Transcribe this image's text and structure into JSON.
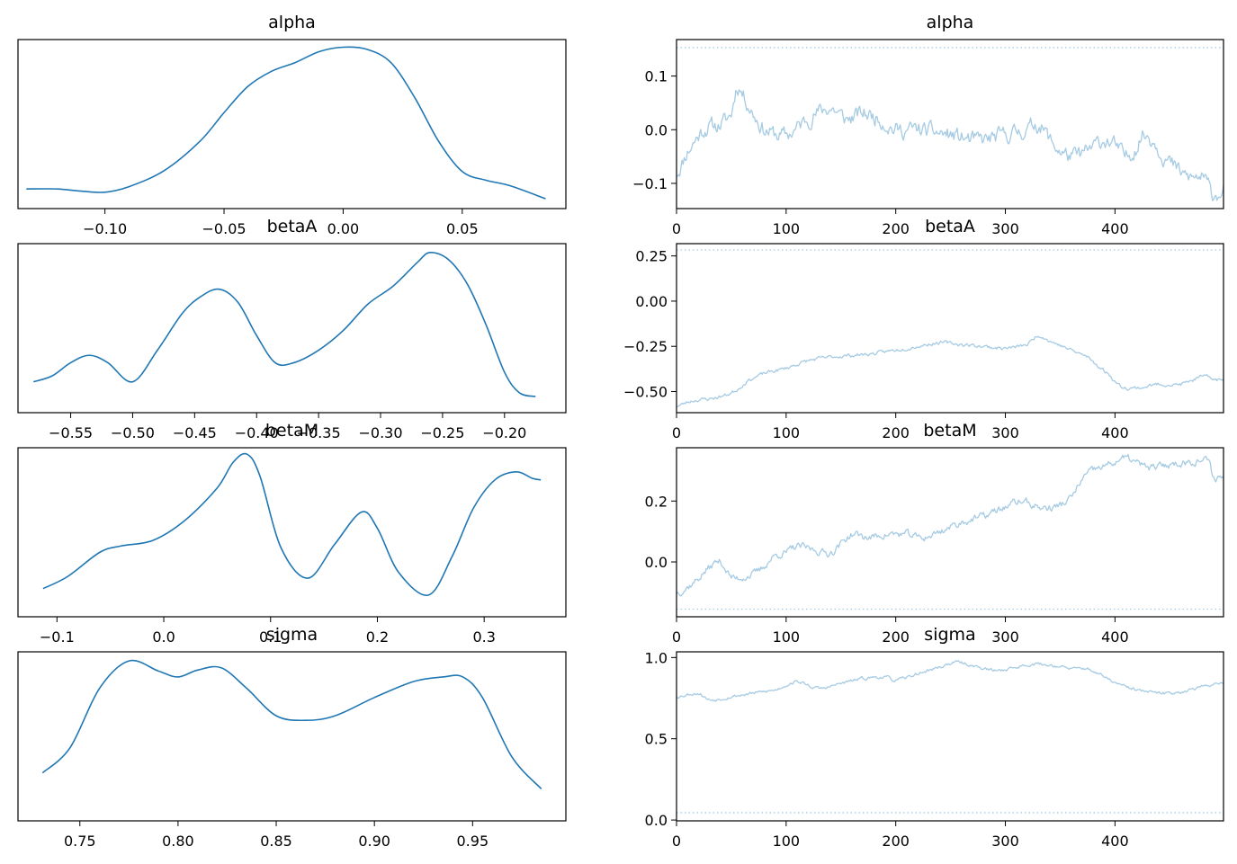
{
  "colors": {
    "kde": "#1f77b4",
    "trace": "#a6cbe3",
    "axes": "#000000"
  },
  "chart_data": [
    {
      "type": "line",
      "panel": "kde",
      "title": "alpha",
      "x": [
        -0.133,
        -0.12,
        -0.11,
        -0.1,
        -0.09,
        -0.075,
        -0.06,
        -0.05,
        -0.04,
        -0.03,
        -0.02,
        -0.01,
        0.0,
        0.01,
        0.02,
        0.03,
        0.04,
        0.05,
        0.06,
        0.07,
        0.085
      ],
      "y": [
        0.18,
        0.18,
        0.16,
        0.15,
        0.2,
        0.35,
        0.62,
        0.88,
        1.12,
        1.26,
        1.34,
        1.44,
        1.48,
        1.46,
        1.34,
        1.02,
        0.62,
        0.34,
        0.26,
        0.21,
        0.09
      ],
      "xticks": [
        -0.1,
        -0.05,
        0.0,
        0.05
      ],
      "xtick_labels": [
        "−0.10",
        "−0.05",
        "0.00",
        "0.05"
      ],
      "xlim": [
        -0.1365,
        0.0935
      ],
      "ylim": [
        0,
        1.55
      ]
    },
    {
      "type": "line",
      "panel": "trace",
      "title": "alpha",
      "x_range": [
        0,
        499
      ],
      "samples": 500,
      "knots_x": [
        0,
        10,
        25,
        40,
        50,
        55,
        62,
        70,
        80,
        100,
        120,
        140,
        155,
        170,
        185,
        200,
        220,
        250,
        275,
        300,
        320,
        330,
        345,
        360,
        375,
        390,
        400,
        410,
        420,
        425,
        435,
        445,
        460,
        470,
        480,
        490,
        499
      ],
      "knots_y": [
        -0.08,
        -0.04,
        0.0,
        0.01,
        0.03,
        0.08,
        0.06,
        0.03,
        0.0,
        -0.01,
        0.02,
        0.04,
        0.02,
        0.03,
        0.02,
        0.0,
        0.0,
        -0.01,
        -0.02,
        -0.01,
        0.0,
        0.01,
        -0.03,
        -0.05,
        -0.04,
        -0.02,
        -0.03,
        -0.05,
        -0.03,
        -0.01,
        -0.02,
        -0.05,
        -0.08,
        -0.09,
        -0.09,
        -0.12,
        -0.11
      ],
      "noise": 0.012,
      "seed": 11,
      "reference_line": 0.153,
      "yticks": [
        -0.1,
        0.0,
        0.1
      ],
      "ytick_labels": [
        "−0.1",
        "0.0",
        "0.1"
      ],
      "xticks": [
        0,
        100,
        200,
        300,
        400
      ],
      "xtick_labels": [
        "0",
        "100",
        "200",
        "300",
        "400"
      ],
      "xlim": [
        0,
        499
      ],
      "ylim": [
        -0.147,
        0.168
      ]
    },
    {
      "type": "line",
      "panel": "kde",
      "title": "betaA",
      "x": [
        -0.58,
        -0.565,
        -0.55,
        -0.535,
        -0.52,
        -0.5,
        -0.48,
        -0.46,
        -0.445,
        -0.43,
        -0.415,
        -0.4,
        -0.385,
        -0.37,
        -0.35,
        -0.33,
        -0.31,
        -0.29,
        -0.27,
        -0.26,
        -0.245,
        -0.23,
        -0.215,
        -0.2,
        -0.188,
        -0.175
      ],
      "y": [
        0.42,
        0.5,
        0.68,
        0.78,
        0.68,
        0.42,
        0.85,
        1.35,
        1.58,
        1.68,
        1.5,
        1.05,
        0.68,
        0.68,
        0.85,
        1.12,
        1.48,
        1.72,
        2.05,
        2.18,
        2.08,
        1.75,
        1.2,
        0.55,
        0.27,
        0.22
      ],
      "xticks": [
        -0.55,
        -0.5,
        -0.45,
        -0.4,
        -0.35,
        -0.3,
        -0.25,
        -0.2
      ],
      "xtick_labels": [
        "−0.55",
        "−0.50",
        "−0.45",
        "−0.40",
        "−0.35",
        "−0.30",
        "−0.25",
        "−0.20"
      ],
      "xlim": [
        -0.5925,
        -0.1505
      ],
      "ylim": [
        0,
        2.3
      ]
    },
    {
      "type": "line",
      "panel": "trace",
      "title": "betaA",
      "x_range": [
        0,
        499
      ],
      "samples": 500,
      "knots_x": [
        0,
        15,
        30,
        45,
        55,
        65,
        80,
        100,
        120,
        140,
        160,
        180,
        200,
        220,
        240,
        260,
        280,
        300,
        320,
        330,
        340,
        360,
        375,
        385,
        395,
        405,
        420,
        440,
        460,
        480,
        499
      ],
      "knots_y": [
        -0.58,
        -0.55,
        -0.54,
        -0.52,
        -0.49,
        -0.44,
        -0.4,
        -0.37,
        -0.33,
        -0.31,
        -0.3,
        -0.29,
        -0.27,
        -0.25,
        -0.23,
        -0.24,
        -0.25,
        -0.26,
        -0.24,
        -0.19,
        -0.22,
        -0.27,
        -0.31,
        -0.36,
        -0.41,
        -0.47,
        -0.48,
        -0.46,
        -0.46,
        -0.42,
        -0.44
      ],
      "noise": 0.008,
      "seed": 23,
      "reference_line": 0.283,
      "yticks": [
        -0.5,
        -0.25,
        0.0,
        0.25
      ],
      "ytick_labels": [
        "−0.50",
        "−0.25",
        "0.00",
        "0.25"
      ],
      "xticks": [
        0,
        100,
        200,
        300,
        400
      ],
      "xtick_labels": [
        "0",
        "100",
        "200",
        "300",
        "400"
      ],
      "xlim": [
        0,
        499
      ],
      "ylim": [
        -0.617,
        0.318
      ]
    },
    {
      "type": "line",
      "panel": "kde",
      "title": "betaM",
      "x": [
        -0.113,
        -0.09,
        -0.06,
        -0.04,
        -0.01,
        0.02,
        0.05,
        0.065,
        0.078,
        0.09,
        0.11,
        0.135,
        0.16,
        0.185,
        0.2,
        0.22,
        0.248,
        0.27,
        0.29,
        0.31,
        0.33,
        0.345,
        0.353
      ],
      "y": [
        0.35,
        0.5,
        0.8,
        0.88,
        0.95,
        1.2,
        1.6,
        1.92,
        2.02,
        1.75,
        0.85,
        0.48,
        0.9,
        1.3,
        1.1,
        0.55,
        0.27,
        0.75,
        1.35,
        1.7,
        1.8,
        1.72,
        1.7
      ],
      "xticks": [
        -0.1,
        0.0,
        0.1,
        0.2,
        0.3
      ],
      "xtick_labels": [
        "−0.1",
        "0.0",
        "0.1",
        "0.2",
        "0.3"
      ],
      "xlim": [
        -0.1365,
        0.3765
      ],
      "ylim": [
        0,
        2.1
      ]
    },
    {
      "type": "line",
      "panel": "trace",
      "title": "betaM",
      "x_range": [
        0,
        499
      ],
      "samples": 500,
      "knots_x": [
        0,
        15,
        30,
        40,
        50,
        60,
        75,
        90,
        100,
        110,
        125,
        140,
        150,
        160,
        175,
        190,
        210,
        225,
        240,
        260,
        280,
        300,
        315,
        330,
        345,
        360,
        370,
        380,
        395,
        410,
        430,
        450,
        470,
        485,
        490,
        499
      ],
      "knots_y": [
        -0.1,
        -0.07,
        -0.02,
        0.0,
        -0.05,
        -0.05,
        -0.03,
        0.02,
        0.03,
        0.05,
        0.04,
        0.03,
        0.06,
        0.09,
        0.08,
        0.09,
        0.09,
        0.08,
        0.1,
        0.13,
        0.15,
        0.18,
        0.2,
        0.18,
        0.18,
        0.21,
        0.27,
        0.3,
        0.32,
        0.34,
        0.31,
        0.32,
        0.33,
        0.33,
        0.28,
        0.28
      ],
      "noise": 0.01,
      "seed": 37,
      "reference_line": -0.155,
      "yticks": [
        0.0,
        0.2
      ],
      "ytick_labels": [
        "0.0",
        "0.2"
      ],
      "xticks": [
        0,
        100,
        200,
        300,
        400
      ],
      "xtick_labels": [
        "0",
        "100",
        "200",
        "300",
        "400"
      ],
      "xlim": [
        0,
        499
      ],
      "ylim": [
        -0.18,
        0.375
      ]
    },
    {
      "type": "line",
      "panel": "kde",
      "title": "sigma",
      "x": [
        0.731,
        0.745,
        0.76,
        0.775,
        0.79,
        0.8,
        0.81,
        0.822,
        0.835,
        0.85,
        0.865,
        0.88,
        0.9,
        0.92,
        0.935,
        0.945,
        0.955,
        0.97,
        0.985
      ],
      "y": [
        1.05,
        1.6,
        2.9,
        3.5,
        3.28,
        3.15,
        3.3,
        3.35,
        2.9,
        2.3,
        2.2,
        2.3,
        2.7,
        3.05,
        3.15,
        3.15,
        2.7,
        1.4,
        0.7
      ],
      "xticks": [
        0.75,
        0.8,
        0.85,
        0.9,
        0.95
      ],
      "xtick_labels": [
        "0.75",
        "0.80",
        "0.85",
        "0.90",
        "0.95"
      ],
      "xlim": [
        0.7185,
        0.9975
      ],
      "ylim": [
        0,
        3.7
      ]
    },
    {
      "type": "line",
      "panel": "trace",
      "title": "sigma",
      "x_range": [
        0,
        499
      ],
      "samples": 500,
      "knots_x": [
        0,
        20,
        30,
        50,
        70,
        90,
        100,
        110,
        130,
        150,
        170,
        190,
        200,
        220,
        240,
        255,
        270,
        290,
        310,
        325,
        345,
        360,
        375,
        390,
        405,
        420,
        440,
        460,
        480,
        499
      ],
      "knots_y": [
        0.76,
        0.78,
        0.74,
        0.76,
        0.78,
        0.8,
        0.83,
        0.85,
        0.81,
        0.84,
        0.87,
        0.88,
        0.86,
        0.9,
        0.94,
        0.97,
        0.95,
        0.92,
        0.94,
        0.96,
        0.95,
        0.93,
        0.93,
        0.88,
        0.83,
        0.8,
        0.78,
        0.79,
        0.82,
        0.85
      ],
      "noise": 0.008,
      "seed": 53,
      "reference_line": 0.045,
      "yticks": [
        0.0,
        0.5,
        1.0
      ],
      "ytick_labels": [
        "0.0",
        "0.5",
        "1.0"
      ],
      "xticks": [
        0,
        100,
        200,
        300,
        400
      ],
      "xtick_labels": [
        "0",
        "100",
        "200",
        "300",
        "400"
      ],
      "xlim": [
        0,
        499
      ],
      "ylim": [
        -0.005,
        1.035
      ]
    }
  ]
}
